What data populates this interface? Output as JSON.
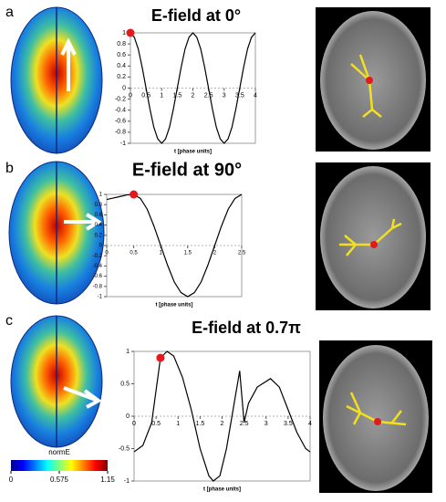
{
  "chart_data": [
    {
      "type": "line",
      "title": "E-field at 0°",
      "xlabel": "t [phase units]",
      "color": "#000000",
      "x": [
        0,
        0.125,
        0.25,
        0.375,
        0.5,
        0.625,
        0.75,
        0.875,
        1,
        1.125,
        1.25,
        1.375,
        1.5,
        1.625,
        1.75,
        1.875,
        2,
        2.125,
        2.25,
        2.375,
        2.5,
        2.625,
        2.75,
        2.875,
        3,
        3.125,
        3.25,
        3.375,
        3.5,
        3.625,
        3.75,
        3.875,
        4
      ],
      "values": [
        1,
        0.92,
        0.71,
        0.38,
        0,
        -0.38,
        -0.71,
        -0.92,
        -1,
        -0.92,
        -0.71,
        -0.38,
        0,
        0.38,
        0.71,
        0.92,
        1,
        0.92,
        0.71,
        0.38,
        0,
        -0.38,
        -0.71,
        -0.92,
        -1,
        -0.92,
        -0.71,
        -0.38,
        0,
        0.38,
        0.71,
        0.92,
        1
      ],
      "xlim": [
        0,
        4
      ],
      "ylim": [
        -1,
        1
      ],
      "xticks": [
        0,
        0.5,
        1,
        1.5,
        2,
        2.5,
        3,
        3.5,
        4
      ],
      "yticks": [
        -1,
        -0.8,
        -0.6,
        -0.4,
        -0.2,
        0,
        0.2,
        0.4,
        0.6,
        0.8,
        1
      ],
      "highlight": {
        "x": 0,
        "y": 1,
        "color": "#e31a1c"
      }
    },
    {
      "type": "line",
      "title": "E-field at 90°",
      "xlabel": "t [phase units]",
      "color": "#000000",
      "x": [
        0,
        0.125,
        0.25,
        0.375,
        0.5,
        0.625,
        0.75,
        0.875,
        1,
        1.125,
        1.25,
        1.375,
        1.5,
        1.625,
        1.75,
        1.875,
        2,
        2.125,
        2.25,
        2.375,
        2.5
      ],
      "values": [
        0.9,
        0.93,
        0.96,
        0.99,
        1,
        0.92,
        0.71,
        0.38,
        0,
        -0.38,
        -0.71,
        -0.92,
        -1,
        -0.92,
        -0.71,
        -0.38,
        0,
        0.38,
        0.71,
        0.92,
        1
      ],
      "xlim": [
        0,
        2.5
      ],
      "ylim": [
        -1,
        1
      ],
      "xticks": [
        0,
        0.5,
        1,
        1.5,
        2,
        2.5
      ],
      "yticks": [
        -1,
        -0.8,
        -0.6,
        -0.4,
        -0.2,
        0,
        0.2,
        0.4,
        0.6,
        0.8,
        1
      ],
      "highlight": {
        "x": 0.5,
        "y": 1,
        "color": "#e31a1c"
      }
    },
    {
      "type": "line",
      "title": "E-field at 0.7π",
      "xlabel": "t [phase units]",
      "color": "#000000",
      "x": [
        0,
        0.2,
        0.4,
        0.5,
        0.6,
        0.75,
        0.9,
        1.1,
        1.3,
        1.5,
        1.7,
        1.8,
        1.95,
        2.1,
        2.25,
        2.4,
        2.5,
        2.6,
        2.8,
        3.1,
        3.3,
        3.5,
        3.7,
        3.9,
        4
      ],
      "values": [
        -0.55,
        -0.45,
        -0.1,
        0.4,
        0.9,
        1,
        0.93,
        0.6,
        0.1,
        -0.5,
        -0.92,
        -1,
        -0.92,
        -0.5,
        0.1,
        0.7,
        -0.1,
        0.2,
        0.45,
        0.58,
        0.45,
        0.1,
        -0.25,
        -0.5,
        -0.55
      ],
      "xlim": [
        0,
        4
      ],
      "ylim": [
        -1,
        1
      ],
      "xticks": [
        0,
        0.5,
        1,
        1.5,
        2,
        2.5,
        3,
        3.5,
        4
      ],
      "yticks": [
        -1,
        -0.5,
        0,
        0.5,
        1
      ],
      "highlight": {
        "x": 0.6,
        "y": 0.9,
        "color": "#e31a1c"
      }
    }
  ],
  "panel_labels": [
    "a",
    "b",
    "c"
  ],
  "colorbar": {
    "label": "normE",
    "lim": [
      0,
      1.15
    ],
    "ticks": [
      0,
      0.575,
      1.15
    ]
  }
}
